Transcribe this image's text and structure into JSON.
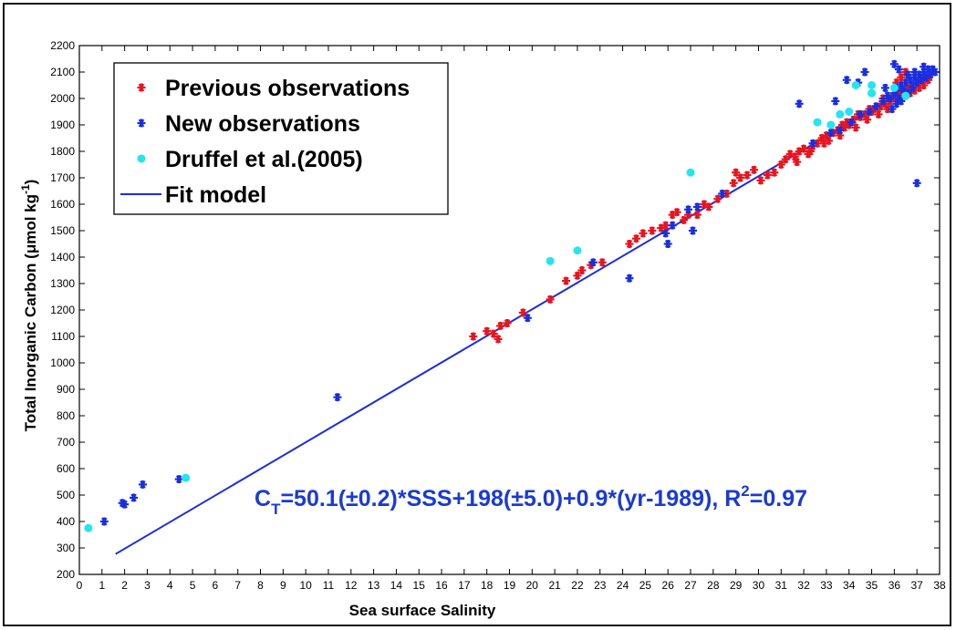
{
  "chart_data": {
    "type": "scatter",
    "xlabel": "Sea surface Salinity",
    "ylabel": "Total Inorganic Carbon (μmol kg",
    "ylabel_sup": "-1",
    "ylabel_close": ")",
    "xlim": [
      0,
      38
    ],
    "ylim": [
      200,
      2200
    ],
    "x_ticks": [
      0,
      1,
      2,
      3,
      4,
      5,
      6,
      7,
      8,
      9,
      10,
      11,
      12,
      13,
      14,
      15,
      16,
      17,
      18,
      19,
      20,
      21,
      22,
      23,
      24,
      25,
      26,
      27,
      28,
      29,
      30,
      31,
      32,
      33,
      34,
      35,
      36,
      37,
      38
    ],
    "y_ticks": [
      200,
      300,
      400,
      500,
      600,
      700,
      800,
      900,
      1000,
      1100,
      1200,
      1300,
      1400,
      1500,
      1600,
      1700,
      1800,
      1900,
      2000,
      2100,
      2200
    ],
    "grid": false,
    "legend_position": "top-left",
    "legend": [
      {
        "label": "Previous observations",
        "marker": "star",
        "color": "#e8141e"
      },
      {
        "label": "New observations",
        "marker": "star",
        "color": "#1a2ee0"
      },
      {
        "label": "Druffel et al.(2005)",
        "marker": "dot",
        "color": "#22e6ee"
      },
      {
        "label": "Fit model",
        "marker": "line",
        "color": "#1a2ee0"
      }
    ],
    "annotation": {
      "prefix": "C",
      "sub": "T",
      "middle": "=50.1(±0.2)*SSS+198(±5.0)+0.9*(yr-1989), R",
      "sup": "2",
      "suffix": "=0.97",
      "color": "#1a3ad6"
    },
    "series": [
      {
        "name": "Previous observations",
        "color": "#e8141e",
        "marker": "star",
        "points": [
          [
            17.4,
            1100
          ],
          [
            18.0,
            1120
          ],
          [
            18.3,
            1110
          ],
          [
            18.5,
            1090
          ],
          [
            18.6,
            1140
          ],
          [
            18.9,
            1150
          ],
          [
            19.6,
            1190
          ],
          [
            20.8,
            1240
          ],
          [
            21.5,
            1310
          ],
          [
            22.0,
            1330
          ],
          [
            22.2,
            1350
          ],
          [
            22.6,
            1370
          ],
          [
            23.1,
            1380
          ],
          [
            24.3,
            1450
          ],
          [
            24.6,
            1470
          ],
          [
            24.9,
            1490
          ],
          [
            25.3,
            1500
          ],
          [
            25.7,
            1510
          ],
          [
            25.9,
            1520
          ],
          [
            26.2,
            1560
          ],
          [
            26.4,
            1570
          ],
          [
            26.7,
            1540
          ],
          [
            26.9,
            1560
          ],
          [
            27.3,
            1560
          ],
          [
            27.6,
            1600
          ],
          [
            27.8,
            1590
          ],
          [
            28.2,
            1620
          ],
          [
            28.6,
            1640
          ],
          [
            28.9,
            1680
          ],
          [
            29.0,
            1720
          ],
          [
            29.2,
            1700
          ],
          [
            29.5,
            1710
          ],
          [
            29.8,
            1730
          ],
          [
            30.1,
            1690
          ],
          [
            30.4,
            1710
          ],
          [
            30.7,
            1720
          ],
          [
            31.0,
            1750
          ],
          [
            31.2,
            1770
          ],
          [
            31.4,
            1790
          ],
          [
            31.6,
            1780
          ],
          [
            31.8,
            1800
          ],
          [
            32.0,
            1810
          ],
          [
            32.2,
            1790
          ],
          [
            32.4,
            1820
          ],
          [
            32.6,
            1830
          ],
          [
            32.8,
            1850
          ],
          [
            33.0,
            1860
          ],
          [
            33.1,
            1840
          ],
          [
            33.3,
            1870
          ],
          [
            33.5,
            1880
          ],
          [
            33.6,
            1860
          ],
          [
            33.8,
            1890
          ],
          [
            33.9,
            1910
          ],
          [
            34.0,
            1900
          ],
          [
            34.2,
            1920
          ],
          [
            34.3,
            1890
          ],
          [
            34.5,
            1930
          ],
          [
            34.7,
            1940
          ],
          [
            34.8,
            1920
          ],
          [
            35.0,
            1950
          ],
          [
            35.1,
            1960
          ],
          [
            35.3,
            1940
          ],
          [
            35.4,
            1970
          ],
          [
            35.6,
            1980
          ],
          [
            35.7,
            1960
          ],
          [
            35.8,
            1990
          ],
          [
            35.9,
            2000
          ],
          [
            36.0,
            2010
          ],
          [
            36.1,
            1990
          ],
          [
            36.2,
            2020
          ],
          [
            36.3,
            2000
          ],
          [
            36.4,
            2030
          ],
          [
            36.5,
            2010
          ],
          [
            36.6,
            2040
          ],
          [
            36.7,
            2020
          ],
          [
            36.8,
            2050
          ],
          [
            36.9,
            2030
          ],
          [
            37.0,
            2060
          ],
          [
            37.1,
            2040
          ],
          [
            37.2,
            2070
          ],
          [
            37.3,
            2050
          ],
          [
            37.4,
            2080
          ],
          [
            37.5,
            2070
          ],
          [
            37.6,
            2090
          ],
          [
            37.7,
            2100
          ],
          [
            36.1,
            2060
          ],
          [
            36.3,
            2080
          ],
          [
            36.5,
            2100
          ],
          [
            35.5,
            2000
          ],
          [
            34.9,
            1960
          ],
          [
            34.4,
            1940
          ],
          [
            33.7,
            1900
          ],
          [
            32.9,
            1830
          ],
          [
            32.3,
            1800
          ],
          [
            31.7,
            1760
          ]
        ]
      },
      {
        "name": "New observations",
        "color": "#1a2ee0",
        "marker": "star",
        "points": [
          [
            1.1,
            400
          ],
          [
            1.9,
            470
          ],
          [
            2.0,
            465
          ],
          [
            2.4,
            490
          ],
          [
            2.8,
            540
          ],
          [
            4.4,
            560
          ],
          [
            11.4,
            870
          ],
          [
            19.8,
            1170
          ],
          [
            22.7,
            1380
          ],
          [
            24.3,
            1320
          ],
          [
            25.9,
            1490
          ],
          [
            26.0,
            1450
          ],
          [
            26.2,
            1520
          ],
          [
            26.9,
            1580
          ],
          [
            27.1,
            1500
          ],
          [
            27.3,
            1590
          ],
          [
            28.4,
            1640
          ],
          [
            31.8,
            1980
          ],
          [
            33.4,
            1990
          ],
          [
            33.9,
            2070
          ],
          [
            34.4,
            2060
          ],
          [
            34.7,
            2100
          ],
          [
            35.6,
            2040
          ],
          [
            36.0,
            2130
          ],
          [
            36.2,
            2110
          ],
          [
            37.0,
            1680
          ],
          [
            32.4,
            1830
          ],
          [
            33.2,
            1870
          ],
          [
            33.6,
            1880
          ],
          [
            34.1,
            1910
          ],
          [
            34.5,
            1940
          ],
          [
            34.9,
            1950
          ],
          [
            35.2,
            1970
          ],
          [
            35.5,
            1990
          ],
          [
            35.8,
            2000
          ],
          [
            36.0,
            2020
          ],
          [
            36.1,
            2040
          ],
          [
            36.2,
            2000
          ],
          [
            36.3,
            2050
          ],
          [
            36.4,
            2030
          ],
          [
            36.5,
            2060
          ],
          [
            36.6,
            2020
          ],
          [
            36.7,
            2070
          ],
          [
            36.8,
            2040
          ],
          [
            36.9,
            2080
          ],
          [
            37.0,
            2060
          ],
          [
            37.1,
            2090
          ],
          [
            37.2,
            2070
          ],
          [
            37.3,
            2100
          ],
          [
            37.4,
            2080
          ],
          [
            37.5,
            2110
          ],
          [
            37.6,
            2090
          ],
          [
            37.7,
            2110
          ],
          [
            37.8,
            2100
          ],
          [
            36.1,
            1980
          ],
          [
            36.3,
            1990
          ],
          [
            35.9,
            1960
          ],
          [
            35.7,
            2010
          ],
          [
            36.6,
            2090
          ],
          [
            36.9,
            2100
          ],
          [
            37.3,
            2120
          ]
        ]
      },
      {
        "name": "Druffel et al.(2005)",
        "color": "#22e6ee",
        "marker": "dot",
        "points": [
          [
            0.4,
            375
          ],
          [
            4.7,
            565
          ],
          [
            20.8,
            1385
          ],
          [
            22.0,
            1425
          ],
          [
            27.0,
            1720
          ],
          [
            32.6,
            1910
          ],
          [
            33.2,
            1900
          ],
          [
            33.6,
            1940
          ],
          [
            34.0,
            1950
          ],
          [
            34.3,
            2050
          ],
          [
            35.0,
            2050
          ],
          [
            35.0,
            2020
          ],
          [
            36.0,
            2040
          ],
          [
            36.5,
            2010
          ]
        ]
      },
      {
        "name": "Fit model",
        "color": "#1a2ee0",
        "marker": "line",
        "points": [
          [
            1.6,
            277
          ],
          [
            37.8,
            2098
          ]
        ]
      }
    ]
  }
}
